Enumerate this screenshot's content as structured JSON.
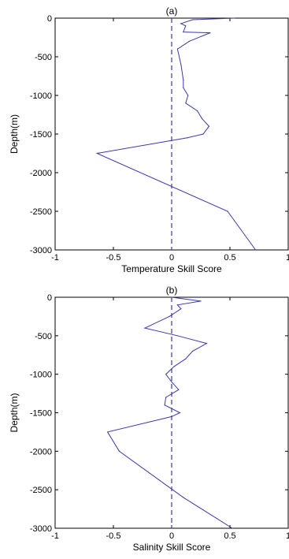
{
  "chart_data": [
    {
      "type": "line",
      "title": "(a)",
      "xlabel": "Temperature Skill Score",
      "ylabel": "Depth(m)",
      "xlim": [
        -1,
        1
      ],
      "ylim": [
        -3000,
        0
      ],
      "xticks": [
        "-1",
        "-0.5",
        "0",
        "0.5",
        "1"
      ],
      "yticks": [
        "0",
        "-500",
        "-1000",
        "-1500",
        "-2000",
        "-2500",
        "-3000"
      ],
      "reference_line": {
        "x": 0,
        "style": "dashed"
      },
      "series": [
        {
          "color": "#3a3aa8",
          "x": [
            0.54,
            0.18,
            0.08,
            0.12,
            0.1,
            0.33,
            0.15,
            0.05,
            0.08,
            0.1,
            0.1,
            0.14,
            0.12,
            0.22,
            0.26,
            0.32,
            0.27,
            0.13,
            -0.64,
            0.48,
            0.72
          ],
          "y": [
            0,
            -20,
            -70,
            -100,
            -180,
            -190,
            -300,
            -400,
            -600,
            -800,
            -900,
            -1000,
            -1100,
            -1200,
            -1300,
            -1400,
            -1500,
            -1550,
            -1750,
            -2500,
            -3000
          ]
        }
      ]
    },
    {
      "type": "line",
      "title": "(b)",
      "xlabel": "Salinity Skill Score",
      "ylabel": "Depth(m)",
      "xlim": [
        -1,
        1
      ],
      "ylim": [
        -3000,
        0
      ],
      "xticks": [
        "-1",
        "-0.5",
        "0",
        "0.5",
        "1"
      ],
      "yticks": [
        "0",
        "-500",
        "-1000",
        "-1500",
        "-2000",
        "-2500",
        "-3000"
      ],
      "reference_line": {
        "x": 0,
        "style": "dashed"
      },
      "series": [
        {
          "color": "#3a3aa8",
          "x": [
            0.0,
            0.25,
            0.05,
            0.08,
            -0.02,
            -0.23,
            0.05,
            0.3,
            0.18,
            0.12,
            0.02,
            -0.05,
            0.0,
            0.06,
            -0.05,
            -0.06,
            0.07,
            0.0,
            -0.55,
            -0.45,
            0.1,
            0.52
          ],
          "y": [
            0,
            -50,
            -100,
            -150,
            -250,
            -400,
            -500,
            -600,
            -700,
            -800,
            -900,
            -1000,
            -1100,
            -1200,
            -1300,
            -1400,
            -1500,
            -1550,
            -1750,
            -2000,
            -2600,
            -3000
          ]
        }
      ]
    }
  ]
}
